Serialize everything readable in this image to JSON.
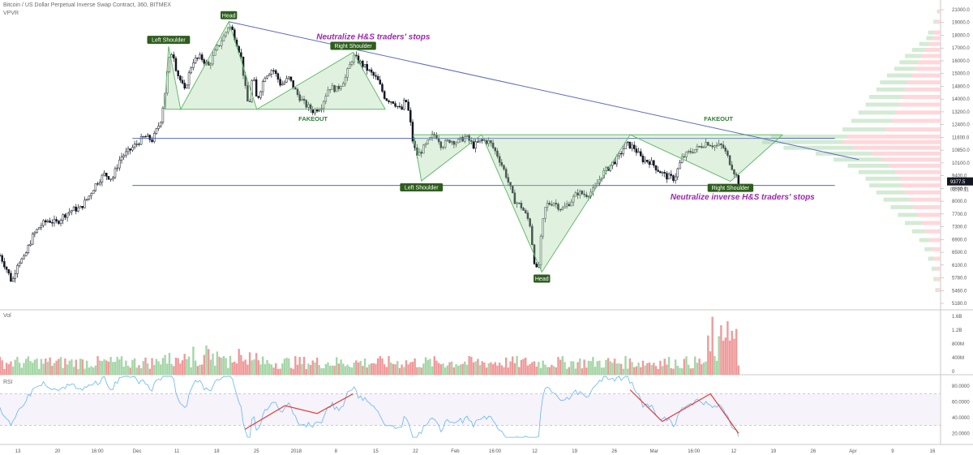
{
  "header": {
    "symbol": "Bitcoin / US Dollar Perpetual Inverse Swap Contract, 360, BITMEX",
    "indicator": "VPVR"
  },
  "panes": {
    "volume_label": "Vol",
    "rsi_label": "RSI"
  },
  "colors": {
    "pattern_fill": "#a5d6a7",
    "pattern_stroke": "#66bb6a",
    "trendline": "#5c6bc0",
    "hline": "#3f51b5",
    "annotation_purple": "#9c27b0",
    "label_bg": "#2e5e1e",
    "label_fg": "#ffffff",
    "fakeout_text": "#2e7d32",
    "vol_up": "#a5d6a7",
    "vol_down": "#ef9a9a",
    "rsi_line": "#64b5f6",
    "rsi_div": "#e53935",
    "candle": "#131722",
    "price_badge": "#131722"
  },
  "chart_data": {
    "type": "candlestick",
    "price_axis": {
      "ticks": [
        "21000.0",
        "19000.0",
        "18000.0",
        "17000.0",
        "16000.0",
        "15000.0",
        "14800.0",
        "14000.0",
        "13200.0",
        "12400.0",
        "11600.0",
        "10850.0",
        "10100.0",
        "9400.0",
        "8800.0",
        "8000.0",
        "7700.0",
        "7300.0",
        "6900.0",
        "6500.0",
        "6100.0",
        "5780.0",
        "5460.0",
        "5180.0"
      ],
      "last_price": "9377.5",
      "countdown": "02:10:11"
    },
    "volume_axis": {
      "ticks": [
        "1.6B",
        "1.2B",
        "800M",
        "400M",
        "0"
      ]
    },
    "rsi_axis": {
      "ticks": [
        "80.0000",
        "60.0000",
        "40.0000",
        "20.0000"
      ]
    },
    "time_axis": {
      "labels": [
        "13",
        "20",
        "16:00",
        "Dec",
        "11",
        "18",
        "25",
        "2018",
        "8",
        "15",
        "22",
        "Feb",
        "16:00",
        "12",
        "19",
        "26",
        "Mar",
        "16:00",
        "12",
        "19",
        "26",
        "Apr",
        "9",
        "16"
      ]
    },
    "close_path": [
      [
        0,
        6600
      ],
      [
        0.008,
        6200
      ],
      [
        0.015,
        5800
      ],
      [
        0.022,
        6400
      ],
      [
        0.03,
        6500
      ],
      [
        0.04,
        7200
      ],
      [
        0.05,
        7600
      ],
      [
        0.06,
        7800
      ],
      [
        0.07,
        7700
      ],
      [
        0.08,
        8000
      ],
      [
        0.09,
        8200
      ],
      [
        0.1,
        8250
      ],
      [
        0.11,
        8700
      ],
      [
        0.12,
        9300
      ],
      [
        0.13,
        9700
      ],
      [
        0.14,
        9500
      ],
      [
        0.15,
        10500
      ],
      [
        0.16,
        10800
      ],
      [
        0.17,
        11200
      ],
      [
        0.18,
        11600
      ],
      [
        0.19,
        11400
      ],
      [
        0.2,
        12500
      ],
      [
        0.205,
        14000
      ],
      [
        0.21,
        16500
      ],
      [
        0.215,
        17500
      ],
      [
        0.22,
        15800
      ],
      [
        0.23,
        14400
      ],
      [
        0.24,
        16600
      ],
      [
        0.25,
        16900
      ],
      [
        0.26,
        16200
      ],
      [
        0.27,
        17600
      ],
      [
        0.28,
        18800
      ],
      [
        0.285,
        19700
      ],
      [
        0.29,
        19100
      ],
      [
        0.3,
        17000
      ],
      [
        0.305,
        14800
      ],
      [
        0.31,
        13200
      ],
      [
        0.315,
        15600
      ],
      [
        0.32,
        13700
      ],
      [
        0.33,
        15500
      ],
      [
        0.34,
        16000
      ],
      [
        0.35,
        14800
      ],
      [
        0.36,
        15300
      ],
      [
        0.37,
        14200
      ],
      [
        0.38,
        13500
      ],
      [
        0.39,
        13100
      ],
      [
        0.4,
        13400
      ],
      [
        0.41,
        14700
      ],
      [
        0.42,
        14500
      ],
      [
        0.43,
        15300
      ],
      [
        0.44,
        17000
      ],
      [
        0.45,
        16400
      ],
      [
        0.46,
        15800
      ],
      [
        0.47,
        15200
      ],
      [
        0.48,
        13900
      ],
      [
        0.49,
        13700
      ],
      [
        0.5,
        13100
      ],
      [
        0.505,
        13900
      ],
      [
        0.51,
        12800
      ],
      [
        0.515,
        11100
      ],
      [
        0.52,
        10600
      ],
      [
        0.53,
        11100
      ],
      [
        0.54,
        11700
      ],
      [
        0.545,
        11600
      ],
      [
        0.55,
        11100
      ],
      [
        0.56,
        11400
      ],
      [
        0.57,
        11300
      ],
      [
        0.58,
        11600
      ],
      [
        0.59,
        11100
      ],
      [
        0.6,
        11400
      ],
      [
        0.61,
        11300
      ],
      [
        0.62,
        10600
      ],
      [
        0.63,
        9700
      ],
      [
        0.64,
        8600
      ],
      [
        0.65,
        8300
      ],
      [
        0.66,
        7700
      ],
      [
        0.665,
        6500
      ],
      [
        0.67,
        6000
      ],
      [
        0.675,
        7500
      ],
      [
        0.68,
        8400
      ],
      [
        0.69,
        8500
      ],
      [
        0.7,
        8200
      ],
      [
        0.71,
        8500
      ],
      [
        0.72,
        8900
      ],
      [
        0.73,
        8800
      ],
      [
        0.74,
        9000
      ],
      [
        0.75,
        9700
      ],
      [
        0.76,
        10100
      ],
      [
        0.77,
        10500
      ],
      [
        0.78,
        11200
      ],
      [
        0.79,
        11000
      ],
      [
        0.8,
        10400
      ],
      [
        0.81,
        10300
      ],
      [
        0.82,
        9900
      ],
      [
        0.83,
        9600
      ],
      [
        0.84,
        9500
      ],
      [
        0.85,
        10500
      ],
      [
        0.86,
        10800
      ],
      [
        0.87,
        11000
      ],
      [
        0.88,
        11300
      ],
      [
        0.89,
        11100
      ],
      [
        0.9,
        11100
      ],
      [
        0.91,
        10200
      ],
      [
        0.92,
        9377.5
      ]
    ],
    "patterns": [
      {
        "name": "H&S",
        "points": [
          [
            0.205,
            13200
          ],
          [
            0.21,
            17800
          ],
          [
            0.225,
            13200
          ],
          [
            0.285,
            20000
          ],
          [
            0.32,
            13200
          ],
          [
            0.44,
            17300
          ],
          [
            0.48,
            13200
          ]
        ]
      },
      {
        "name": "Inverse H&S",
        "points": [
          [
            0.515,
            11700
          ],
          [
            0.525,
            9400
          ],
          [
            0.6,
            11700
          ],
          [
            0.675,
            6100
          ],
          [
            0.785,
            11700
          ],
          [
            0.91,
            9377.5
          ],
          [
            0.975,
            11700
          ]
        ]
      }
    ],
    "trendline": [
      [
        0.285,
        20000
      ],
      [
        1.07,
        10400
      ]
    ],
    "hlines": [
      11500,
      9200
    ],
    "hline_extent": 1.04,
    "labels": [
      {
        "text": "Left Shoulder",
        "x": 0.21,
        "y": 17800,
        "pos": "above",
        "style": "badge"
      },
      {
        "text": "Head",
        "x": 0.285,
        "y": 20000,
        "pos": "above",
        "style": "badge"
      },
      {
        "text": "Right Shoulder",
        "x": 0.44,
        "y": 17300,
        "pos": "above",
        "style": "badge"
      },
      {
        "text": "Left Shoulder",
        "x": 0.525,
        "y": 9400,
        "pos": "below",
        "style": "badge"
      },
      {
        "text": "Head",
        "x": 0.675,
        "y": 6100,
        "pos": "below",
        "style": "badge"
      },
      {
        "text": "Right Shoulder",
        "x": 0.91,
        "y": 9377.5,
        "pos": "below",
        "style": "badge"
      },
      {
        "text": "FAKEOUT",
        "x": 0.39,
        "y": 12500,
        "pos": "center",
        "style": "fakeout"
      },
      {
        "text": "FAKEOUT",
        "x": 0.895,
        "y": 12500,
        "pos": "center",
        "style": "fakeout"
      },
      {
        "text": "Neutralize H&S traders' stops",
        "x": 0.465,
        "y": 18400,
        "pos": "center",
        "style": "note"
      },
      {
        "text": "Neutralize inverse H&S traders' stops",
        "x": 0.925,
        "y": 8600,
        "pos": "center",
        "style": "note"
      }
    ],
    "volume_profile": [
      [
        21000,
        0.02
      ],
      [
        20000,
        0.04
      ],
      [
        19000,
        0.07
      ],
      [
        18500,
        0.08
      ],
      [
        18000,
        0.12
      ],
      [
        17500,
        0.16
      ],
      [
        17000,
        0.2
      ],
      [
        16500,
        0.23
      ],
      [
        16000,
        0.26
      ],
      [
        15500,
        0.3
      ],
      [
        15000,
        0.34
      ],
      [
        14500,
        0.36
      ],
      [
        14000,
        0.4
      ],
      [
        13500,
        0.42
      ],
      [
        13000,
        0.46
      ],
      [
        12500,
        0.5
      ],
      [
        12000,
        0.55
      ],
      [
        11600,
        0.95
      ],
      [
        11300,
        1.0
      ],
      [
        11000,
        0.88
      ],
      [
        10700,
        0.7
      ],
      [
        10400,
        0.6
      ],
      [
        10100,
        0.52
      ],
      [
        9800,
        0.46
      ],
      [
        9500,
        0.42
      ],
      [
        9200,
        0.4
      ],
      [
        8900,
        0.36
      ],
      [
        8600,
        0.32
      ],
      [
        8300,
        0.28
      ],
      [
        8000,
        0.24
      ],
      [
        7700,
        0.2
      ],
      [
        7400,
        0.16
      ],
      [
        7100,
        0.12
      ],
      [
        6800,
        0.09
      ],
      [
        6500,
        0.07
      ],
      [
        6200,
        0.05
      ],
      [
        5900,
        0.04
      ],
      [
        5600,
        0.03
      ]
    ],
    "rsi_divergences": [
      [
        [
          0.305,
          25
        ],
        [
          0.355,
          55
        ],
        [
          0.395,
          45
        ],
        [
          0.44,
          70
        ]
      ],
      [
        [
          0.785,
          75
        ],
        [
          0.825,
          35
        ],
        [
          0.885,
          70
        ],
        [
          0.92,
          20
        ]
      ]
    ],
    "rsi_levels": [
      70,
      30
    ]
  }
}
